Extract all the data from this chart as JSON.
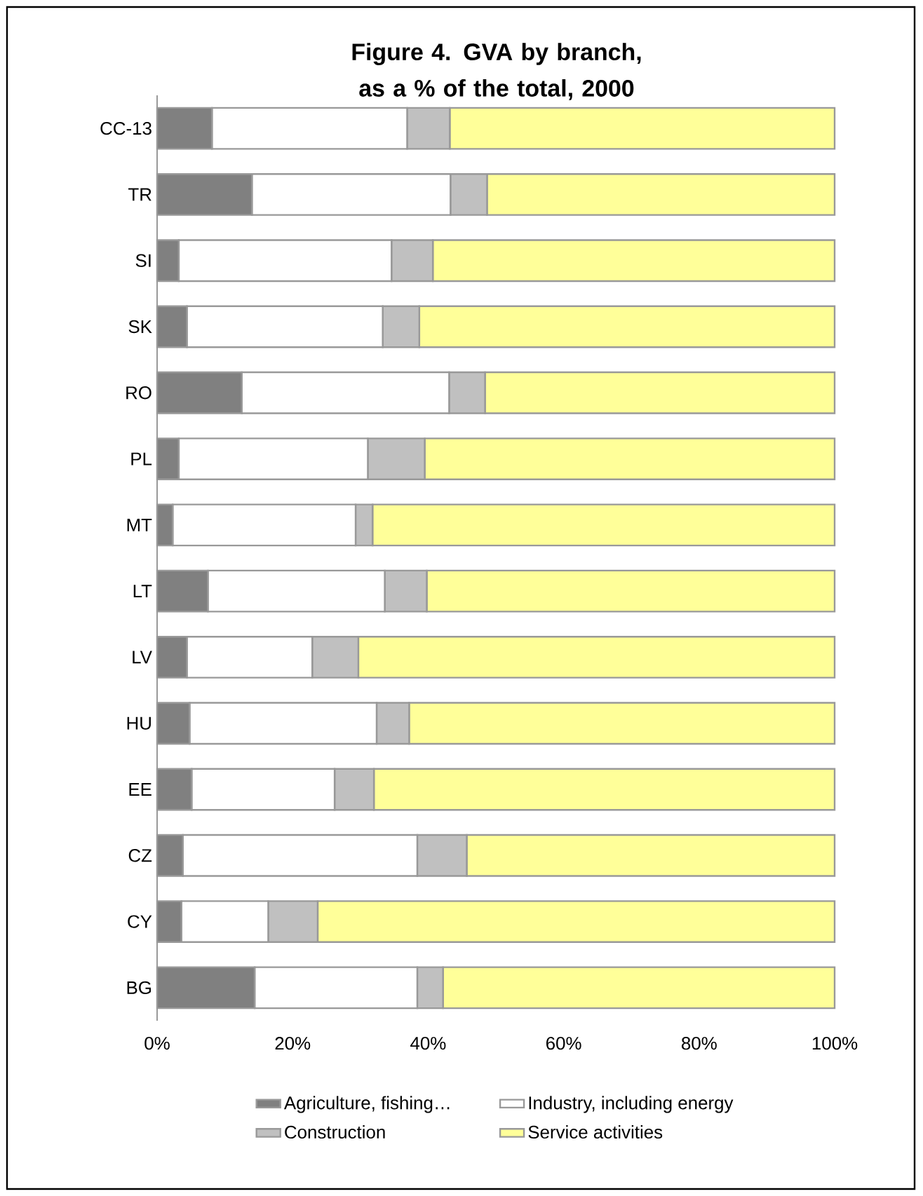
{
  "chart_data": {
    "type": "bar",
    "orientation": "horizontal",
    "stacked": true,
    "title": "Figure 4. GVA by branch, as a % of the total, 2000",
    "categories": [
      "CC-13",
      "TR",
      "SI",
      "SK",
      "RO",
      "PL",
      "MT",
      "LT",
      "LV",
      "HU",
      "EE",
      "CZ",
      "CY",
      "BG"
    ],
    "series": [
      {
        "name": "Agriculture, fishing…",
        "color": "#808080",
        "values": [
          8.1,
          14.0,
          3.2,
          4.4,
          12.5,
          3.2,
          2.3,
          7.5,
          4.4,
          4.8,
          5.1,
          3.8,
          3.6,
          14.4
        ]
      },
      {
        "name": "Industry, including energy",
        "color": "#ffffff",
        "values": [
          28.8,
          29.3,
          31.4,
          28.9,
          30.6,
          27.9,
          27.0,
          26.1,
          18.5,
          27.6,
          21.1,
          34.6,
          12.8,
          24.0
        ]
      },
      {
        "name": "Construction",
        "color": "#c0c0c0",
        "values": [
          6.3,
          5.4,
          6.1,
          5.4,
          5.3,
          8.4,
          2.5,
          6.2,
          6.8,
          4.8,
          5.8,
          7.3,
          7.3,
          3.8
        ]
      },
      {
        "name": "Service activities",
        "color": "#ffff99",
        "values": [
          56.8,
          51.3,
          59.3,
          61.3,
          51.6,
          60.5,
          68.2,
          60.2,
          70.3,
          62.8,
          68.0,
          54.3,
          76.3,
          57.8
        ]
      }
    ],
    "xlim": [
      0,
      100
    ],
    "xticks": [
      {
        "value": 0,
        "label": "0%"
      },
      {
        "value": 20,
        "label": "20%"
      },
      {
        "value": 40,
        "label": "40%"
      },
      {
        "value": 60,
        "label": "60%"
      },
      {
        "value": 80,
        "label": "80%"
      },
      {
        "value": 100,
        "label": "100%"
      }
    ],
    "legend": "bottom"
  }
}
